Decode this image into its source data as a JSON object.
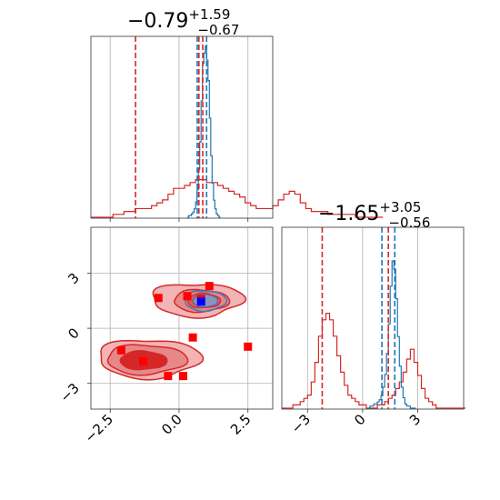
{
  "chart_data": {
    "type": "corner",
    "colors": {
      "red": "#d62728",
      "blue": "#1f77b4",
      "red_marker": "#ff0000",
      "blue_marker": "#0000ff"
    },
    "params": [
      {
        "title_value": "−0.79",
        "title_plus": "+1.59",
        "title_minus": "−0.67",
        "range": [
          -3.2,
          3.4
        ]
      },
      {
        "title_value": "−1.65",
        "title_plus": "+3.05",
        "title_minus": "−0.56",
        "range": [
          -4.4,
          5.5
        ]
      }
    ],
    "x_ticks_param1": [
      {
        "value": -2.5,
        "label": "−2.5"
      },
      {
        "value": 0,
        "label": "0.0"
      },
      {
        "value": 2.5,
        "label": "2.5"
      }
    ],
    "y_ticks_param2": [
      {
        "value": 3,
        "label": "3"
      },
      {
        "value": 0,
        "label": "0"
      },
      {
        "value": -3,
        "label": "−3"
      }
    ],
    "x_ticks_param2": [
      {
        "value": -3,
        "label": "−3"
      },
      {
        "value": 0,
        "label": "0"
      },
      {
        "value": 3,
        "label": "3"
      }
    ],
    "hist1_red": {
      "bin_start": -3.2,
      "bin_width": 0.2,
      "values": [
        0,
        0,
        0,
        0,
        1,
        1,
        2,
        2,
        3,
        3,
        3,
        4,
        5,
        6,
        8,
        10,
        10,
        11,
        12,
        13,
        13,
        12,
        12,
        11,
        10,
        9,
        8,
        7,
        5,
        4,
        3,
        3,
        3,
        4,
        6,
        8,
        9,
        8,
        5,
        3,
        2,
        2,
        2,
        1,
        1,
        1,
        1,
        1,
        0,
        0,
        0,
        0,
        0
      ]
    },
    "hist1_blue": {
      "bin_start": 0.3,
      "bin_width": 0.05,
      "values": [
        0,
        1,
        1,
        2,
        3,
        5,
        9,
        16,
        28,
        44,
        68,
        90,
        96,
        100,
        92,
        80,
        58,
        36,
        20,
        10,
        5,
        2,
        1,
        0
      ]
    },
    "hist1_red_lines": [
      -1.58,
      0.72,
      0.86
    ],
    "hist1_blue_lines": [
      0.66,
      1.0
    ],
    "hist2_red": {
      "bin_start": -4.4,
      "bin_width": 0.2,
      "values": [
        0,
        0,
        0,
        1,
        1,
        2,
        3,
        4,
        8,
        14,
        22,
        27,
        29,
        27,
        22,
        16,
        11,
        7,
        4,
        3,
        2,
        1,
        1,
        0,
        0,
        0,
        1,
        1,
        2,
        3,
        4,
        6,
        8,
        11,
        15,
        18,
        14,
        10,
        6,
        3,
        2,
        1,
        0,
        0,
        0,
        0,
        0,
        0,
        0,
        0
      ]
    },
    "hist2_blue": {
      "bin_start": 0.3,
      "bin_width": 0.1,
      "values": [
        0,
        1,
        1,
        2,
        2,
        3,
        4,
        6,
        10,
        16,
        26,
        40,
        58,
        70,
        66,
        52,
        34,
        20,
        10,
        5,
        2,
        1,
        1,
        0,
        0,
        0
      ]
    },
    "hist2_red_lines": [
      -2.2,
      1.4
    ],
    "hist2_blue_lines": [
      1.05,
      1.75
    ],
    "scatter_red_squares": [
      [
        -2.1,
        -1.2
      ],
      [
        -1.3,
        -1.8
      ],
      [
        -0.4,
        -2.6
      ],
      [
        0.15,
        -2.6
      ],
      [
        0.5,
        -0.5
      ],
      [
        2.5,
        -1.0
      ],
      [
        -0.75,
        1.65
      ],
      [
        0.3,
        1.75
      ],
      [
        1.1,
        2.3
      ],
      [
        0.8,
        1.6
      ]
    ],
    "scatter_blue_square": [
      0.8,
      1.45
    ],
    "contours_upper": {
      "center": [
        0.8,
        1.5
      ]
    },
    "contours_lower": {
      "center": [
        -1.2,
        -1.7
      ]
    }
  }
}
